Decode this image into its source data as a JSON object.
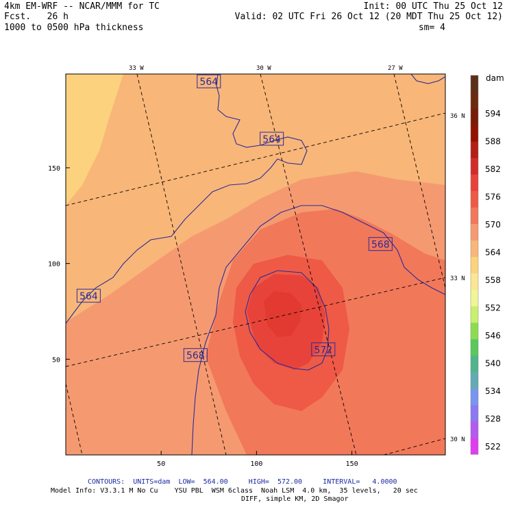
{
  "header": {
    "line1_left": "4km EM-WRF -- NCAR/MMM for TC",
    "line2_left": "Fcst.   26 h",
    "line3_left": "1000 to 0500 hPa thickness",
    "line1_right": "Init: 00 UTC Thu 25 Oct 12",
    "line2_right": "Valid: 02 UTC Fri 26 Oct 12 (20 MDT Thu 25 Oct 12)",
    "line3_right": "sm= 4"
  },
  "footer": {
    "contours": "CONTOURS:  UNITS=dam  LOW=  564.00     HIGH=  572.00     INTERVAL=   4.0000",
    "model_info": "Model Info: V3.3.1 M No Cu    YSU PBL  WSM 6class  Noah LSM  4.0 km,  35 levels,   20 sec",
    "model_info2": "DIFF, simple KM, 2D Smagor"
  },
  "chart_data": {
    "type": "heatmap",
    "x_ticks": [
      50,
      100,
      150
    ],
    "y_ticks": [
      50,
      100,
      150
    ],
    "xlim": [
      0,
      199
    ],
    "ylim": [
      0,
      199
    ],
    "lon_labels": [
      "33 W",
      "30 W",
      "27 W"
    ],
    "lat_labels": [
      "36 N",
      "33 N",
      "30 N"
    ],
    "colorbar": {
      "units": "dam",
      "levels": [
        522,
        528,
        534,
        540,
        546,
        552,
        558,
        564,
        570,
        576,
        582,
        588,
        594
      ],
      "tick_labels": [
        "594",
        "588",
        "582",
        "576",
        "570",
        "564",
        "558",
        "552",
        "546",
        "540",
        "534",
        "528",
        "522"
      ],
      "colors": [
        "#e13cf0",
        "#b45af0",
        "#8c78f0",
        "#7896f0",
        "#64aab4",
        "#50b48c",
        "#5ac85a",
        "#8cdc50",
        "#c8f06e",
        "#f0f596",
        "#fae696",
        "#fcd27e",
        "#f8b678",
        "#f59a70",
        "#f2785a",
        "#ee5a46",
        "#e8433a",
        "#d22c28",
        "#b41e14",
        "#921200",
        "#7a1a08",
        "#6a2a10",
        "#5a3018"
      ]
    },
    "contour_labels": [
      {
        "text": "564",
        "x": 75,
        "y": 195
      },
      {
        "text": "564",
        "x": 108,
        "y": 165
      },
      {
        "text": "564",
        "x": 12,
        "y": 83
      },
      {
        "text": "568",
        "x": 68,
        "y": 52
      },
      {
        "text": "568",
        "x": 165,
        "y": 110
      },
      {
        "text": "572",
        "x": 135,
        "y": 55
      }
    ],
    "fill_regions": [
      {
        "level": "558-564",
        "color": "#fcd27e"
      },
      {
        "level": "564-570",
        "color": "#f8b678"
      },
      {
        "level": "567-570",
        "color": "#f59a70"
      },
      {
        "level": "570-573",
        "color": "#f2785a"
      },
      {
        "level": "573-576",
        "color": "#ee5a46"
      },
      {
        "level": "576-579",
        "color": "#e8433a"
      }
    ],
    "grid": true
  }
}
